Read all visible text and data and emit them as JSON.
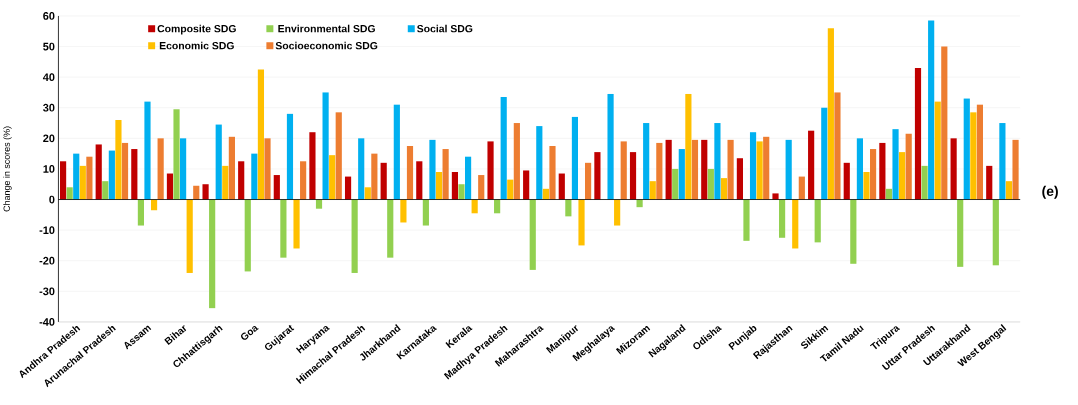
{
  "chart_data": {
    "type": "bar",
    "ylabel": "Change in scores (%)",
    "categories": [
      "Andhra Pradesh",
      "Arunachal Pradesh",
      "Assam",
      "Bihar",
      "Chhattisgarh",
      "Goa",
      "Gujarat",
      "Haryana",
      "Himachal Pradesh",
      "Jharkhand",
      "Karnataka",
      "Kerala",
      "Madhya Pradesh",
      "Maharashtra",
      "Manipur",
      "Meghalaya",
      "Mizoram",
      "Nagaland",
      "Odisha",
      "Punjab",
      "Rajasthan",
      "Sikkim",
      "Tamil Nadu",
      "Tripura",
      "Uttar Pradesh",
      "Uttarakhand",
      "West Bengal"
    ],
    "series": [
      {
        "name": "Composite SDG",
        "color": "#c00000",
        "values": [
          12.5,
          18,
          16.5,
          8.5,
          5,
          12.5,
          8,
          22,
          7.5,
          12,
          12.5,
          9,
          19,
          9.5,
          8.5,
          15.5,
          15.5,
          19.5,
          19.5,
          13.5,
          2,
          22.5,
          12,
          18.5,
          43,
          20,
          11
        ]
      },
      {
        "name": "Environmental SDG",
        "color": "#92d050",
        "values": [
          4,
          6,
          -8.5,
          29.5,
          -35.5,
          -23.5,
          -19,
          -3,
          -24,
          -19,
          -8.5,
          5,
          -4.5,
          -23,
          -5.5,
          null,
          -2.5,
          10,
          10,
          -13.5,
          -12.5,
          -14,
          -21,
          3.5,
          11,
          -22,
          -21.5
        ]
      },
      {
        "name": "Social SDG",
        "color": "#00b0f0",
        "values": [
          15,
          16,
          32,
          20,
          24.5,
          15,
          28,
          35,
          20,
          31,
          19.5,
          14,
          33.5,
          24,
          27,
          34.5,
          25,
          16.5,
          25,
          22,
          19.5,
          30,
          20,
          23,
          58.5,
          33,
          25
        ]
      },
      {
        "name": "Economic SDG",
        "color": "#ffc000",
        "values": [
          11,
          26,
          -3.5,
          -24,
          11,
          42.5,
          -16,
          14.5,
          4,
          -7.5,
          9,
          -4.5,
          6.5,
          3.5,
          -15,
          -8.5,
          6,
          34.5,
          7,
          19,
          -16,
          56,
          9,
          15.5,
          32,
          28.5,
          6
        ]
      },
      {
        "name": "Socioeconomic SDG",
        "color": "#ed7d31",
        "values": [
          14,
          18.5,
          20,
          4.5,
          20.5,
          20,
          12.5,
          28.5,
          15,
          17.5,
          16.5,
          8,
          25,
          17.5,
          12,
          19,
          18.5,
          19.5,
          19.5,
          20.5,
          7.5,
          35,
          16.5,
          21.5,
          50,
          31,
          19.5
        ]
      }
    ],
    "ylim": [
      -40,
      60
    ],
    "yticks": [
      -40,
      -30,
      -20,
      -10,
      0,
      10,
      20,
      30,
      40,
      50,
      60
    ],
    "grid": "y",
    "legend": "top left",
    "annotations": [
      "(e)"
    ]
  }
}
